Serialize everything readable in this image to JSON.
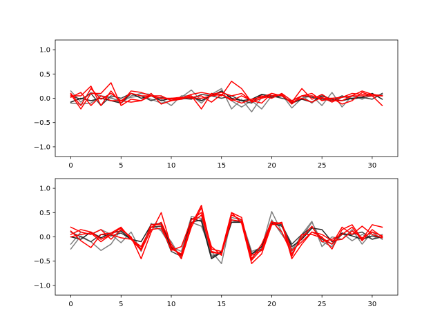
{
  "figure": {
    "background": "#ffffff"
  },
  "chart_data": [
    {
      "type": "line",
      "title": "",
      "xlabel": "",
      "ylabel": "",
      "xlim": [
        -1.55,
        32.55
      ],
      "ylim": [
        -1.2,
        1.2
      ],
      "x_ticks": [
        0,
        5,
        10,
        15,
        20,
        25,
        30
      ],
      "x_tick_labels": [
        "0",
        "5",
        "10",
        "15",
        "20",
        "25",
        "30"
      ],
      "y_ticks": [
        -1.0,
        -0.5,
        0.0,
        0.5,
        1.0
      ],
      "y_tick_labels": [
        "−1.0",
        "−0.5",
        "0.0",
        "0.5",
        "1.0"
      ],
      "grid": false,
      "legend": false,
      "x": [
        0,
        1,
        2,
        3,
        4,
        5,
        6,
        7,
        8,
        9,
        10,
        11,
        12,
        13,
        14,
        15,
        16,
        17,
        18,
        19,
        20,
        21,
        22,
        23,
        24,
        25,
        26,
        27,
        28,
        29,
        30,
        31
      ],
      "series": [
        {
          "color": "#808080",
          "values": [
            0.15,
            -0.08,
            0.12,
            0.05,
            0.0,
            -0.05,
            0.02,
            0.05,
            -0.02,
            -0.1,
            -0.05,
            0.02,
            0.17,
            -0.05,
            0.08,
            0.2,
            -0.22,
            -0.02,
            -0.28,
            0.02,
            0.05,
            0.08,
            -0.2,
            0.0,
            0.05,
            -0.15,
            0.12,
            -0.18,
            0.05,
            -0.02,
            0.08,
            0.05
          ]
        },
        {
          "color": "#808080",
          "values": [
            -0.1,
            -0.12,
            -0.1,
            0.05,
            0.02,
            -0.1,
            0.05,
            0.1,
            0.08,
            -0.02,
            -0.15,
            0.05,
            0.05,
            -0.1,
            0.1,
            0.08,
            -0.05,
            -0.18,
            -0.05,
            -0.22,
            0.05,
            0.08,
            -0.1,
            0.05,
            -0.1,
            0.08,
            -0.05,
            0.02,
            0.05,
            0.0,
            0.05,
            0.08
          ]
        },
        {
          "color": "#404040",
          "values": [
            0.05,
            -0.02,
            0.1,
            -0.15,
            0.05,
            0.0,
            0.1,
            0.05,
            -0.05,
            0.02,
            -0.02,
            0.0,
            -0.02,
            0.08,
            0.05,
            0.0,
            0.05,
            -0.05,
            -0.1,
            0.08,
            0.05,
            0.0,
            -0.05,
            0.05,
            0.02,
            -0.02,
            -0.05,
            0.05,
            -0.02,
            0.02,
            -0.02,
            0.1
          ]
        },
        {
          "color": "#222222",
          "values": [
            -0.08,
            0.0,
            -0.05,
            0.0,
            -0.05,
            -0.1,
            0.1,
            0.0,
            0.05,
            -0.05,
            0.0,
            -0.02,
            0.02,
            -0.05,
            0.05,
            0.15,
            0.0,
            -0.05,
            -0.02,
            0.08,
            0.02,
            0.05,
            -0.1,
            -0.02,
            -0.08,
            0.05,
            -0.02,
            -0.05,
            0.0,
            0.02,
            0.1,
            -0.02
          ]
        },
        {
          "color": "#ff0000",
          "values": [
            0.08,
            -0.22,
            0.1,
            0.1,
            0.32,
            -0.15,
            -0.02,
            -0.05,
            0.1,
            -0.12,
            -0.05,
            -0.02,
            0.05,
            -0.22,
            0.1,
            0.05,
            0.35,
            0.2,
            -0.08,
            0.0,
            0.05,
            0.08,
            -0.12,
            0.05,
            0.1,
            -0.05,
            0.0,
            -0.12,
            -0.05,
            0.12,
            0.05,
            -0.15
          ]
        },
        {
          "color": "#ff0000",
          "values": [
            0.05,
            0.05,
            0.25,
            -0.15,
            0.15,
            -0.1,
            0.15,
            0.12,
            0.05,
            0.0,
            -0.02,
            0.0,
            0.08,
            0.12,
            0.08,
            0.12,
            0.05,
            0.1,
            -0.05,
            -0.1,
            0.1,
            0.05,
            -0.08,
            0.2,
            -0.02,
            0.08,
            -0.05,
            -0.05,
            0.05,
            0.15,
            0.08,
            0.05
          ]
        },
        {
          "color": "#ff0000",
          "values": [
            0.02,
            0.12,
            -0.15,
            0.05,
            -0.05,
            -0.05,
            -0.08,
            -0.05,
            0.05,
            0.05,
            -0.05,
            0.0,
            0.02,
            0.05,
            -0.08,
            0.08,
            -0.02,
            -0.1,
            -0.02,
            0.02,
            0.1,
            0.05,
            -0.08,
            0.0,
            -0.08,
            0.02,
            -0.08,
            0.02,
            0.05,
            0.05,
            0.05,
            0.05
          ]
        },
        {
          "color": "#ff0000",
          "values": [
            0.1,
            -0.15,
            0.2,
            -0.02,
            0.1,
            -0.05,
            0.1,
            0.05,
            0.05,
            0.0,
            0.0,
            0.02,
            0.0,
            0.0,
            0.05,
            0.08,
            -0.05,
            0.05,
            -0.05,
            0.05,
            0.0,
            0.1,
            -0.05,
            0.05,
            0.05,
            0.0,
            0.0,
            0.02,
            0.1,
            0.08,
            0.08,
            0.05
          ]
        }
      ]
    },
    {
      "type": "line",
      "title": "",
      "xlabel": "",
      "ylabel": "",
      "xlim": [
        -1.55,
        32.55
      ],
      "ylim": [
        -1.2,
        1.2
      ],
      "x_ticks": [
        0,
        5,
        10,
        15,
        20,
        25,
        30
      ],
      "x_tick_labels": [
        "0",
        "5",
        "10",
        "15",
        "20",
        "25",
        "30"
      ],
      "y_ticks": [
        -1.0,
        -0.5,
        0.0,
        0.5,
        1.0
      ],
      "y_tick_labels": [
        "−1.0",
        "−0.5",
        "0.0",
        "0.5",
        "1.0"
      ],
      "grid": false,
      "legend": false,
      "x": [
        0,
        1,
        2,
        3,
        4,
        5,
        6,
        7,
        8,
        9,
        10,
        11,
        12,
        13,
        14,
        15,
        16,
        17,
        18,
        19,
        20,
        21,
        22,
        23,
        24,
        25,
        26,
        27,
        28,
        29,
        30,
        31
      ],
      "series": [
        {
          "color": "#808080",
          "values": [
            -0.25,
            0.02,
            -0.1,
            -0.28,
            -0.15,
            0.15,
            -0.02,
            -0.25,
            0.2,
            0.15,
            -0.1,
            -0.45,
            0.3,
            0.22,
            -0.3,
            -0.55,
            0.4,
            0.35,
            -0.3,
            -0.22,
            0.52,
            0.1,
            -0.3,
            0.05,
            0.32,
            -0.2,
            0.0,
            -0.05,
            0.15,
            -0.15,
            0.1,
            -0.05
          ]
        },
        {
          "color": "#808080",
          "values": [
            -0.15,
            0.1,
            0.05,
            0.15,
            0.05,
            -0.12,
            0.1,
            -0.3,
            0.28,
            0.12,
            -0.2,
            -0.3,
            0.42,
            0.38,
            -0.38,
            -0.35,
            0.3,
            0.35,
            -0.45,
            -0.2,
            0.35,
            0.05,
            -0.25,
            0.0,
            0.3,
            -0.1,
            -0.2,
            0.08,
            -0.08,
            0.05,
            -0.05,
            0.05
          ]
        },
        {
          "color": "#404040",
          "values": [
            0.1,
            0.0,
            -0.1,
            0.05,
            0.02,
            0.08,
            -0.05,
            -0.2,
            0.2,
            0.22,
            -0.3,
            -0.4,
            0.3,
            0.35,
            -0.42,
            -0.3,
            0.35,
            0.3,
            -0.35,
            -0.25,
            0.3,
            0.25,
            -0.15,
            0.05,
            0.2,
            -0.05,
            -0.15,
            0.05,
            0.05,
            0.1,
            -0.05,
            0.0
          ]
        },
        {
          "color": "#222222",
          "values": [
            0.0,
            -0.05,
            0.1,
            -0.02,
            0.08,
            0.12,
            -0.05,
            -0.1,
            0.25,
            0.28,
            -0.22,
            -0.38,
            0.38,
            0.32,
            -0.45,
            -0.32,
            0.3,
            0.3,
            -0.35,
            -0.2,
            0.28,
            0.22,
            -0.2,
            -0.05,
            0.18,
            0.15,
            -0.1,
            0.08,
            0.02,
            -0.05,
            0.02,
            -0.02
          ]
        },
        {
          "color": "#ff0000",
          "values": [
            0.2,
            0.1,
            0.05,
            0.15,
            -0.05,
            0.15,
            0.0,
            -0.45,
            0.1,
            0.5,
            -0.2,
            -0.4,
            0.25,
            0.65,
            -0.3,
            -0.35,
            0.45,
            0.35,
            -0.48,
            -0.25,
            0.3,
            0.28,
            -0.45,
            -0.15,
            0.1,
            0.0,
            -0.25,
            0.15,
            0.25,
            -0.05,
            0.25,
            0.2
          ]
        },
        {
          "color": "#ff0000",
          "values": [
            0.12,
            -0.08,
            -0.22,
            0.05,
            0.08,
            0.2,
            -0.05,
            -0.2,
            0.2,
            0.3,
            -0.15,
            -0.45,
            0.2,
            0.6,
            -0.25,
            -0.3,
            0.5,
            0.28,
            -0.55,
            -0.35,
            0.25,
            0.3,
            -0.4,
            0.05,
            0.05,
            -0.02,
            -0.15,
            0.2,
            0.05,
            0.22,
            0.05,
            -0.02
          ]
        },
        {
          "color": "#ff0000",
          "values": [
            0.05,
            0.15,
            0.1,
            -0.05,
            0.05,
            0.18,
            -0.02,
            -0.25,
            0.25,
            0.25,
            -0.28,
            -0.2,
            0.35,
            0.5,
            -0.2,
            -0.38,
            0.5,
            0.4,
            -0.45,
            -0.15,
            0.32,
            0.1,
            -0.35,
            -0.02,
            0.22,
            -0.1,
            -0.05,
            0.05,
            0.2,
            -0.08,
            0.15,
            0.0
          ]
        },
        {
          "color": "#ff0000",
          "values": [
            0.0,
            0.05,
            0.08,
            -0.1,
            0.05,
            -0.02,
            -0.05,
            -0.28,
            0.15,
            0.18,
            -0.25,
            -0.35,
            0.28,
            0.45,
            -0.32,
            -0.35,
            0.35,
            0.32,
            -0.38,
            -0.28,
            0.25,
            0.28,
            -0.28,
            -0.1,
            0.1,
            0.05,
            -0.08,
            -0.05,
            0.12,
            -0.02,
            0.1,
            0.02
          ]
        }
      ]
    }
  ]
}
